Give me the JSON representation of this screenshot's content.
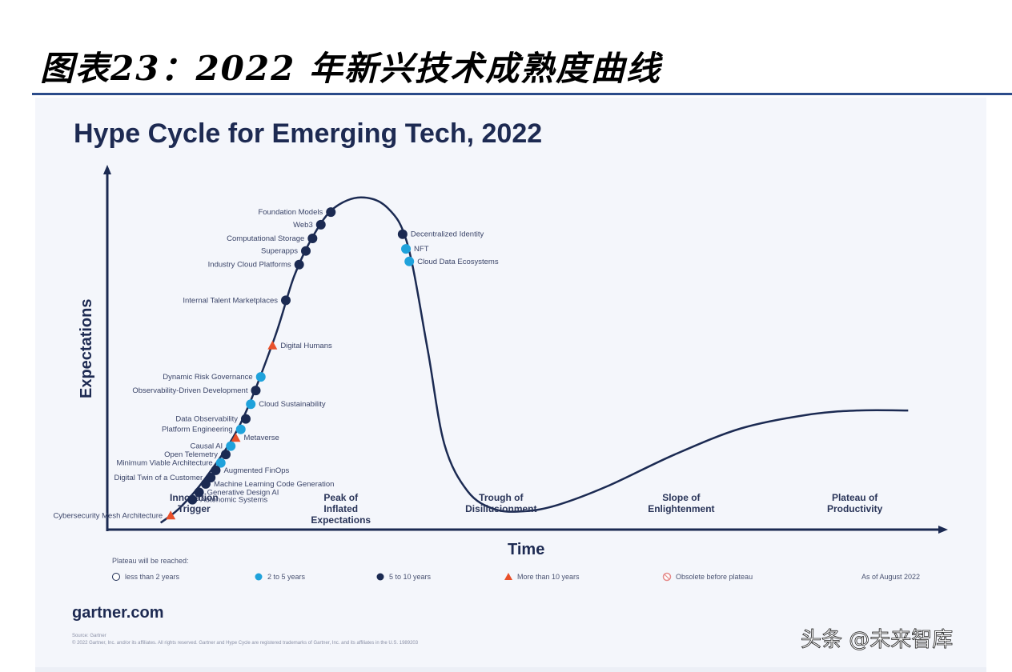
{
  "caption": "图表23：2022 年新兴技术成熟度曲线",
  "chart_data": {
    "type": "line",
    "title": "Hype Cycle for Emerging Tech, 2022",
    "xlabel": "Time",
    "ylabel": "Expectations",
    "phases": [
      {
        "label_lines": [
          "Innovation",
          "Trigger"
        ],
        "x": 2.6
      },
      {
        "label_lines": [
          "Peak of",
          "Inflated",
          "Expectations"
        ],
        "x": 7.0
      },
      {
        "label_lines": [
          "Trough of",
          "Disillusionment"
        ],
        "x": 11.8
      },
      {
        "label_lines": [
          "Slope of",
          "Enlightenment"
        ],
        "x": 17.2
      },
      {
        "label_lines": [
          "Plateau of",
          "Productivity"
        ],
        "x": 22.4
      }
    ],
    "curve": [
      [
        1.6,
        0.5
      ],
      [
        2.2,
        2
      ],
      [
        3.0,
        5
      ],
      [
        4.0,
        10
      ],
      [
        5.0,
        18
      ],
      [
        5.6,
        24
      ],
      [
        6.2,
        28
      ],
      [
        6.8,
        30.5
      ],
      [
        7.6,
        31.5
      ],
      [
        8.4,
        30.5
      ],
      [
        9.0,
        27
      ],
      [
        9.6,
        17
      ],
      [
        10.1,
        8
      ],
      [
        10.8,
        3.5
      ],
      [
        11.6,
        1.8
      ],
      [
        12.5,
        1.6
      ],
      [
        13.5,
        2.2
      ],
      [
        15.0,
        4
      ],
      [
        17.0,
        7
      ],
      [
        19.0,
        9.5
      ],
      [
        21.0,
        10.8
      ],
      [
        22.5,
        11.2
      ],
      [
        24.0,
        11.2
      ]
    ],
    "technologies": [
      {
        "name": "Foundation Models",
        "x": 6.7,
        "y": 30.1,
        "legend": "5 to 10 years"
      },
      {
        "name": "Web3",
        "x": 6.4,
        "y": 28.9,
        "legend": "5 to 10 years"
      },
      {
        "name": "Computational Storage",
        "x": 6.15,
        "y": 27.6,
        "legend": "5 to 10 years"
      },
      {
        "name": "Superapps",
        "x": 5.95,
        "y": 26.4,
        "legend": "5 to 10 years"
      },
      {
        "name": "Industry Cloud Platforms",
        "x": 5.75,
        "y": 25.1,
        "legend": "5 to 10 years"
      },
      {
        "name": "Internal Talent Marketplaces",
        "x": 5.35,
        "y": 21.7,
        "legend": "5 to 10 years"
      },
      {
        "name": "Digital Humans",
        "x": 4.95,
        "y": 17.4,
        "legend": "More than 10 years"
      },
      {
        "name": "Dynamic Risk Governance",
        "x": 4.6,
        "y": 14.4,
        "legend": "2 to 5 years"
      },
      {
        "name": "Observability-Driven Development",
        "x": 4.45,
        "y": 13.1,
        "legend": "5 to 10 years"
      },
      {
        "name": "Cloud Sustainability",
        "x": 4.3,
        "y": 11.8,
        "legend": "2 to 5 years"
      },
      {
        "name": "Data Observability",
        "x": 4.15,
        "y": 10.4,
        "legend": "5 to 10 years"
      },
      {
        "name": "Platform Engineering",
        "x": 4.0,
        "y": 9.4,
        "legend": "2 to 5 years"
      },
      {
        "name": "Metaverse",
        "x": 3.85,
        "y": 8.6,
        "legend": "More than 10 years"
      },
      {
        "name": "Causal AI",
        "x": 3.7,
        "y": 7.8,
        "legend": "2 to 5 years"
      },
      {
        "name": "Open Telemetry",
        "x": 3.55,
        "y": 7.0,
        "legend": "5 to 10 years"
      },
      {
        "name": "Minimum Viable Architecture",
        "x": 3.4,
        "y": 6.2,
        "legend": "2 to 5 years"
      },
      {
        "name": "Augmented FinOps",
        "x": 3.25,
        "y": 5.5,
        "legend": "5 to 10 years"
      },
      {
        "name": "Digital Twin of a Customer",
        "x": 3.1,
        "y": 4.8,
        "legend": "5 to 10 years"
      },
      {
        "name": "Machine Learning Code Generation",
        "x": 2.95,
        "y": 4.2,
        "legend": "5 to 10 years"
      },
      {
        "name": "Generative Design AI",
        "x": 2.75,
        "y": 3.4,
        "legend": "5 to 10 years"
      },
      {
        "name": "Autonomic Systems",
        "x": 2.55,
        "y": 2.7,
        "legend": "5 to 10 years"
      },
      {
        "name": "Cybersecurity Mesh Architecture",
        "x": 1.9,
        "y": 1.2,
        "legend": "More than 10 years"
      },
      {
        "name": "Decentralized Identity",
        "x": 8.85,
        "y": 28.0,
        "legend": "5 to 10 years"
      },
      {
        "name": "NFT",
        "x": 8.95,
        "y": 26.6,
        "legend": "2 to 5 years"
      },
      {
        "name": "Cloud Data Ecosystems",
        "x": 9.05,
        "y": 25.4,
        "legend": "2 to 5 years"
      }
    ],
    "legend_title": "Plateau will be reached:",
    "legend": [
      {
        "label": "less than 2 years",
        "marker": "hollow-circle",
        "color": "#ffffff"
      },
      {
        "label": "2 to 5 years",
        "marker": "circle",
        "color": "#1fa2db"
      },
      {
        "label": "5 to 10 years",
        "marker": "circle",
        "color": "#1b2a52"
      },
      {
        "label": "More than 10 years",
        "marker": "triangle",
        "color": "#e8502a"
      },
      {
        "label": "Obsolete before plateau",
        "marker": "crossed-circle",
        "color": "#e58a8a"
      }
    ],
    "as_of": "As of August 2022",
    "source": "gartner.com",
    "fineprint": [
      "Source: Gartner",
      "© 2022 Gartner, Inc. and/or its affiliates. All rights reserved. Gartner and Hype Cycle are registered trademarks of Gartner, Inc. and its affiliates in the U.S. 1989203"
    ],
    "xlim": [
      0,
      25
    ],
    "ylim": [
      0,
      34
    ]
  },
  "watermark": "头条 @未来智库",
  "colors": {
    "curve": "#1b2a52",
    "accent_blue": "#1fa2db",
    "accent_orange": "#e8502a",
    "rule": "#2b4b8a"
  }
}
